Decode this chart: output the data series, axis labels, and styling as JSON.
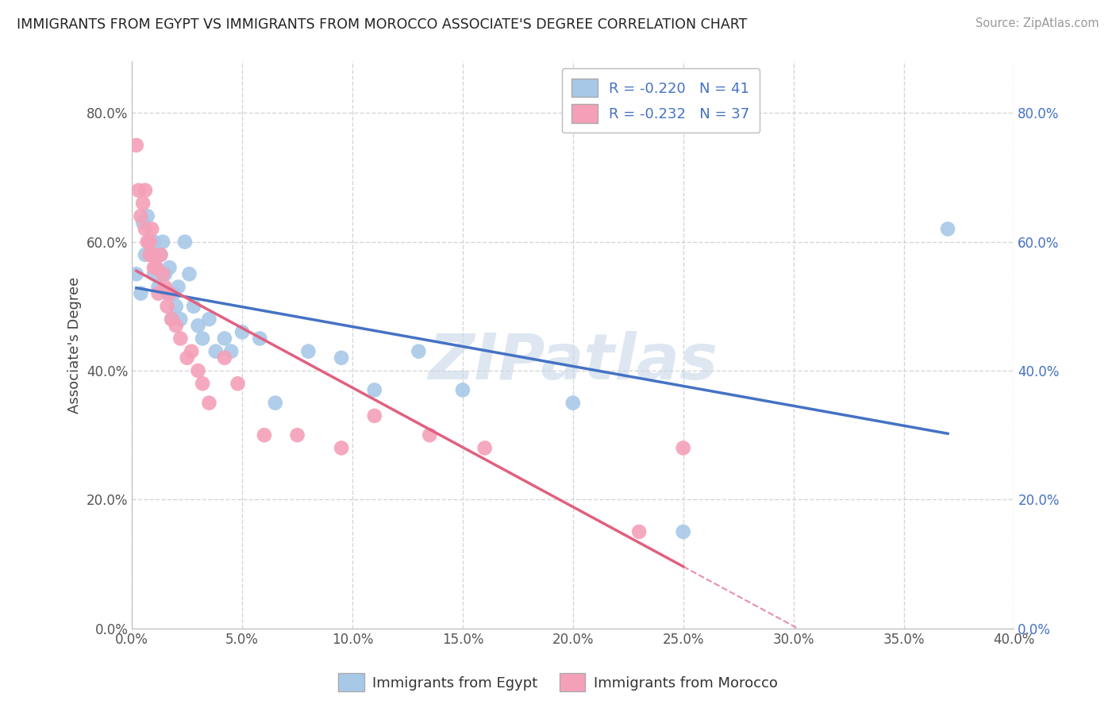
{
  "title": "IMMIGRANTS FROM EGYPT VS IMMIGRANTS FROM MOROCCO ASSOCIATE'S DEGREE CORRELATION CHART",
  "source": "Source: ZipAtlas.com",
  "ylabel": "Associate's Degree",
  "legend_label1": "Immigrants from Egypt",
  "legend_label2": "Immigrants from Morocco",
  "R1": -0.22,
  "N1": 41,
  "R2": -0.232,
  "N2": 37,
  "xlim": [
    0.0,
    0.4
  ],
  "ylim": [
    0.0,
    0.88
  ],
  "xtick_vals": [
    0.0,
    0.05,
    0.1,
    0.15,
    0.2,
    0.25,
    0.3,
    0.35,
    0.4
  ],
  "ytick_vals": [
    0.0,
    0.2,
    0.4,
    0.6,
    0.8
  ],
  "color_egypt": "#a8c8e8",
  "color_morocco": "#f4a0b8",
  "trendline_egypt": "#4472c4",
  "trendline_morocco": "#e06080",
  "watermark": "ZIPatlas",
  "watermark_color": "#c8d8e8",
  "egypt_x": [
    0.002,
    0.004,
    0.005,
    0.006,
    0.007,
    0.008,
    0.009,
    0.01,
    0.01,
    0.011,
    0.012,
    0.013,
    0.014,
    0.015,
    0.016,
    0.017,
    0.018,
    0.019,
    0.02,
    0.021,
    0.022,
    0.024,
    0.026,
    0.028,
    0.03,
    0.032,
    0.035,
    0.038,
    0.042,
    0.045,
    0.05,
    0.058,
    0.065,
    0.08,
    0.095,
    0.11,
    0.13,
    0.15,
    0.2,
    0.25,
    0.37
  ],
  "egypt_y": [
    0.55,
    0.52,
    0.63,
    0.58,
    0.64,
    0.6,
    0.58,
    0.55,
    0.6,
    0.56,
    0.53,
    0.58,
    0.6,
    0.55,
    0.52,
    0.56,
    0.48,
    0.52,
    0.5,
    0.53,
    0.48,
    0.6,
    0.55,
    0.5,
    0.47,
    0.45,
    0.48,
    0.43,
    0.45,
    0.43,
    0.46,
    0.45,
    0.35,
    0.43,
    0.42,
    0.37,
    0.43,
    0.37,
    0.35,
    0.15,
    0.62
  ],
  "morocco_x": [
    0.002,
    0.003,
    0.004,
    0.005,
    0.006,
    0.006,
    0.007,
    0.008,
    0.008,
    0.009,
    0.01,
    0.01,
    0.011,
    0.012,
    0.013,
    0.014,
    0.015,
    0.016,
    0.017,
    0.018,
    0.02,
    0.022,
    0.025,
    0.027,
    0.03,
    0.032,
    0.035,
    0.042,
    0.048,
    0.06,
    0.075,
    0.095,
    0.11,
    0.135,
    0.16,
    0.23,
    0.25
  ],
  "morocco_y": [
    0.75,
    0.68,
    0.64,
    0.66,
    0.62,
    0.68,
    0.6,
    0.58,
    0.6,
    0.62,
    0.56,
    0.58,
    0.56,
    0.52,
    0.58,
    0.55,
    0.53,
    0.5,
    0.52,
    0.48,
    0.47,
    0.45,
    0.42,
    0.43,
    0.4,
    0.38,
    0.35,
    0.42,
    0.38,
    0.3,
    0.3,
    0.28,
    0.33,
    0.3,
    0.28,
    0.15,
    0.28
  ]
}
